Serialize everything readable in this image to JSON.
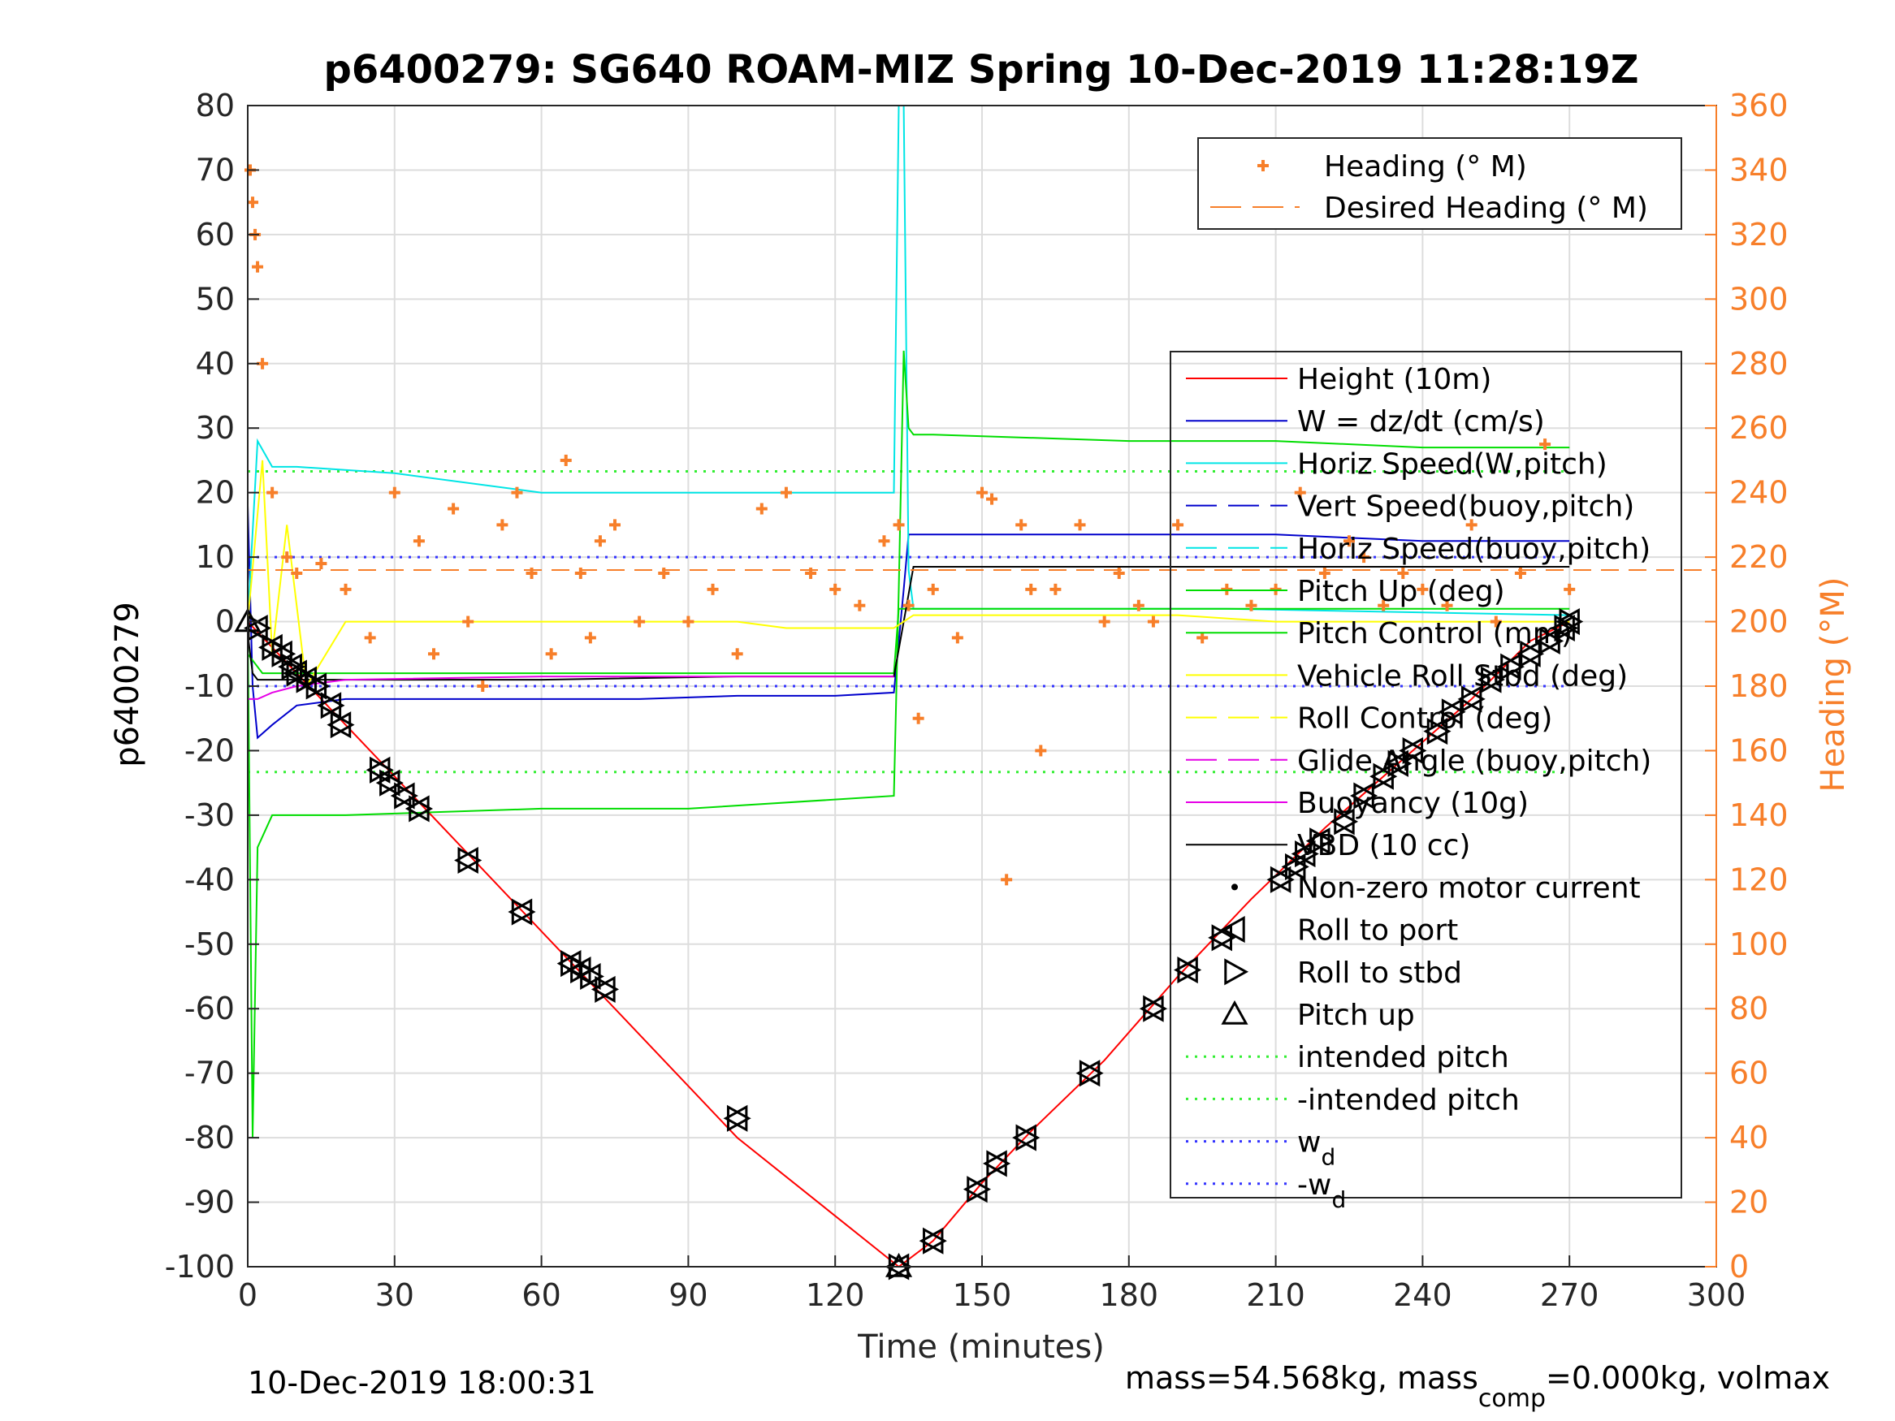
{
  "chart_data": {
    "type": "line",
    "title": "p6400279: SG640 ROAM-MIZ Spring 10-Dec-2019 11:28:19Z",
    "xlabel": "Time (minutes)",
    "ylabel_left": "p6400279",
    "ylabel_right": "Heading (°M)",
    "xlim": [
      0,
      300
    ],
    "ylim_left": [
      -100,
      80
    ],
    "ylim_right": [
      0,
      360
    ],
    "xticks": [
      "0",
      "30",
      "60",
      "90",
      "120",
      "150",
      "180",
      "210",
      "240",
      "270",
      "300"
    ],
    "yticks_left": [
      "80",
      "70",
      "60",
      "50",
      "40",
      "30",
      "20",
      "10",
      "0",
      "-10",
      "-20",
      "-30",
      "-40",
      "-50",
      "-60",
      "-70",
      "-80",
      "-90",
      "-100"
    ],
    "yticks_right": [
      "360",
      "340",
      "320",
      "300",
      "280",
      "260",
      "240",
      "220",
      "200",
      "180",
      "160",
      "140",
      "120",
      "100",
      "80",
      "60",
      "40",
      "20",
      "0"
    ],
    "grid": true,
    "footer_left": "10-Dec-2019 18:00:31",
    "footer_right_prefix": "mass=54.568kg, mass",
    "footer_right_sub": "comp",
    "footer_right_suffix": "=0.000kg, volmax",
    "legend_heading": [
      {
        "name": "Heading (° M)",
        "color": "#f77f2a"
      },
      {
        "name": "Desired Heading (° M)",
        "color": "#f77f2a"
      }
    ],
    "legend_main": [
      {
        "name": "Height (10m)",
        "color": "#ff0000",
        "style": "solid"
      },
      {
        "name": "W = dz/dt (cm/s)",
        "color": "#0000cc",
        "style": "solid"
      },
      {
        "name": "Horiz Speed(W,pitch)",
        "color": "#00e5e5",
        "style": "solid"
      },
      {
        "name": "Vert Speed(buoy,pitch)",
        "color": "#0000cc",
        "style": "dashed"
      },
      {
        "name": "Horiz Speed(buoy,pitch)",
        "color": "#00e5e5",
        "style": "dashed"
      },
      {
        "name": "Pitch Up (deg)",
        "color": "#00dd00",
        "style": "solid"
      },
      {
        "name": "Pitch Control (mm)",
        "color": "#00dd00",
        "style": "solid"
      },
      {
        "name": "Vehicle Roll Stbd (deg)",
        "color": "#ffff00",
        "style": "solid"
      },
      {
        "name": "Roll Control (deg)",
        "color": "#ffff00",
        "style": "dashed"
      },
      {
        "name": "Glide Angle (buoy,pitch)",
        "color": "#e600e6",
        "style": "dashed"
      },
      {
        "name": "Buoyancy (10g)",
        "color": "#e600e6",
        "style": "solid"
      },
      {
        "name": "VBD (10 cc)",
        "color": "#000000",
        "style": "solid"
      },
      {
        "name": "Non-zero motor current",
        "color": "#000000",
        "style": "dot"
      },
      {
        "name": "Roll to port",
        "color": "#000000",
        "style": "tri-left"
      },
      {
        "name": "Roll to stbd",
        "color": "#000000",
        "style": "tri-right"
      },
      {
        "name": "Pitch up",
        "color": "#000000",
        "style": "tri-up"
      },
      {
        "name": "intended pitch",
        "color": "#33ee33",
        "style": "dotted"
      },
      {
        "name": "-intended pitch",
        "color": "#33ee33",
        "style": "dotted"
      },
      {
        "name": "w",
        "sub": "d",
        "color": "#3333ff",
        "style": "dotted"
      },
      {
        "name": "-w",
        "sub": "d",
        "color": "#3333ff",
        "style": "dotted"
      }
    ],
    "series": [
      {
        "name": "Height (10m)",
        "axis": "left",
        "color": "#ff0000",
        "x": [
          0,
          5,
          10,
          20,
          30,
          45,
          60,
          75,
          100,
          133,
          140,
          150,
          160,
          175,
          190,
          205,
          220,
          235,
          250,
          262,
          270
        ],
        "y": [
          0,
          -4,
          -8,
          -16,
          -24,
          -36,
          -48,
          -60,
          -80,
          -100,
          -96,
          -87,
          -79,
          -68,
          -55,
          -43,
          -32,
          -22,
          -12,
          -3,
          0
        ]
      },
      {
        "name": "W = dz/dt (cm/s)",
        "axis": "left",
        "color": "#0000cc",
        "x": [
          0,
          1,
          2,
          5,
          10,
          20,
          40,
          60,
          80,
          100,
          120,
          132,
          134,
          135,
          150,
          180,
          210,
          240,
          270
        ],
        "y": [
          18,
          -10,
          -18,
          -16,
          -13,
          -12,
          -12,
          -12,
          -12,
          -11.5,
          -11.5,
          -11,
          5,
          13.5,
          13.5,
          13.5,
          13.5,
          12.5,
          12.5
        ]
      },
      {
        "name": "Horiz Speed(W,pitch)",
        "axis": "left",
        "color": "#00e5e5",
        "x": [
          0,
          2,
          5,
          10,
          30,
          60,
          90,
          120,
          132,
          133,
          134,
          135,
          136,
          150,
          200,
          270
        ],
        "y": [
          0,
          28,
          24,
          24,
          23,
          20,
          20,
          20,
          20,
          80,
          80,
          8,
          2,
          2,
          2,
          1
        ]
      },
      {
        "name": "Pitch Up (deg)",
        "axis": "left",
        "color": "#00dd00",
        "x": [
          0,
          1,
          2,
          5,
          20,
          60,
          90,
          132,
          133,
          134,
          135,
          136,
          140,
          180,
          210,
          240,
          270
        ],
        "y": [
          0,
          -80,
          -35,
          -30,
          -30,
          -29,
          -29,
          -27,
          5,
          42,
          30,
          29,
          29,
          28,
          28,
          27,
          27
        ]
      },
      {
        "name": "Pitch Control (mm)",
        "axis": "left",
        "color": "#00dd00",
        "x": [
          0,
          3,
          20,
          60,
          132,
          133,
          136,
          270
        ],
        "y": [
          -5,
          -8,
          -8,
          -8,
          -8,
          2,
          2,
          2
        ]
      },
      {
        "name": "VBD (10 cc)",
        "axis": "left",
        "color": "#000000",
        "x": [
          0,
          1,
          2,
          20,
          60,
          100,
          132,
          134,
          136,
          200,
          270
        ],
        "y": [
          -2,
          -8,
          -9,
          -9,
          -9,
          -8.5,
          -8.5,
          0,
          8.5,
          8.5,
          8.5
        ]
      },
      {
        "name": "Buoyancy (10g)",
        "axis": "left",
        "color": "#e600e6",
        "x": [
          0,
          2,
          5,
          10,
          20,
          60,
          100,
          132
        ],
        "y": [
          -12,
          -12,
          -11,
          -10,
          -9,
          -8.5,
          -8.5,
          -8.5
        ]
      },
      {
        "name": "Vehicle Roll Stbd (deg)",
        "axis": "left",
        "color": "#ffff00",
        "x": [
          0,
          3,
          5,
          8,
          12,
          20,
          35,
          50,
          60,
          70,
          80,
          90,
          100,
          110,
          120,
          132,
          136,
          150,
          170,
          190,
          210,
          230,
          250,
          270
        ],
        "y": [
          0,
          25,
          -5,
          15,
          -10,
          0,
          0,
          0,
          0,
          0,
          0,
          0,
          0,
          -1,
          -1,
          -1,
          1,
          1,
          1,
          1,
          0,
          0,
          0,
          0
        ]
      },
      {
        "name": "Heading (° M)",
        "axis": "right",
        "color": "#f77f2a",
        "marker": "plus",
        "x": [
          0.5,
          1,
          1.5,
          2,
          3,
          5,
          8,
          10,
          15,
          20,
          25,
          30,
          35,
          38,
          42,
          45,
          48,
          52,
          55,
          58,
          62,
          65,
          68,
          70,
          72,
          75,
          80,
          85,
          90,
          95,
          100,
          105,
          110,
          115,
          120,
          125,
          130,
          133,
          135,
          137,
          140,
          145,
          150,
          152,
          155,
          158,
          160,
          162,
          165,
          170,
          175,
          178,
          182,
          185,
          190,
          195,
          200,
          205,
          210,
          215,
          220,
          225,
          228,
          232,
          236,
          240,
          245,
          250,
          255,
          260,
          265,
          270
        ],
        "y": [
          340,
          330,
          320,
          310,
          280,
          240,
          220,
          215,
          218,
          210,
          195,
          240,
          225,
          190,
          235,
          200,
          180,
          230,
          240,
          215,
          190,
          250,
          215,
          195,
          225,
          230,
          200,
          215,
          200,
          210,
          190,
          235,
          240,
          215,
          210,
          205,
          225,
          230,
          205,
          170,
          210,
          195,
          240,
          238,
          120,
          230,
          210,
          160,
          210,
          230,
          200,
          215,
          205,
          200,
          230,
          195,
          210,
          205,
          210,
          240,
          215,
          225,
          220,
          205,
          215,
          210,
          205,
          230,
          200,
          215,
          255,
          210
        ]
      },
      {
        "name": "Desired Heading (° M)",
        "axis": "right",
        "color": "#f77f2a",
        "dashed": true,
        "x": [
          0,
          300
        ],
        "y": [
          216,
          216
        ]
      },
      {
        "name": "intended pitch",
        "axis": "left",
        "color": "#33ee33",
        "dotted": true,
        "x": [
          0,
          270
        ],
        "y": [
          23.3,
          23.3
        ]
      },
      {
        "name": "-intended pitch",
        "axis": "left",
        "color": "#33ee33",
        "dotted": true,
        "x": [
          0,
          270
        ],
        "y": [
          -23.3,
          -23.3
        ]
      },
      {
        "name": "w_d",
        "axis": "left",
        "color": "#3333ff",
        "dotted": true,
        "x": [
          0,
          270
        ],
        "y": [
          10,
          10
        ]
      },
      {
        "name": "-w_d",
        "axis": "left",
        "color": "#3333ff",
        "dotted": true,
        "x": [
          0,
          270
        ],
        "y": [
          -10,
          -10
        ]
      }
    ],
    "markers": {
      "pitch_up": {
        "x": [
          0,
          133
        ],
        "y": [
          0,
          -100
        ]
      },
      "roll_events": {
        "x": [
          2,
          5,
          7,
          9,
          10,
          12,
          14,
          17,
          19,
          27,
          29,
          32,
          35,
          45,
          56,
          66,
          68,
          70,
          73,
          100,
          133,
          140,
          149,
          153,
          159,
          172,
          185,
          192,
          199,
          211,
          214,
          216,
          219,
          224,
          228,
          232,
          235,
          238,
          243,
          246,
          250,
          254,
          258,
          262,
          266,
          269,
          270
        ],
        "y": [
          -1,
          -4,
          -5,
          -7,
          -8,
          -9,
          -10,
          -13,
          -16,
          -23,
          -25,
          -27,
          -29,
          -37,
          -45,
          -53,
          -54,
          -55,
          -57,
          -77,
          -100,
          -96,
          -88,
          -84,
          -80,
          -70,
          -60,
          -54,
          -49,
          -40,
          -38,
          -36,
          -34,
          -31,
          -27,
          -24,
          -22,
          -20,
          -17,
          -14,
          -12,
          -9,
          -7,
          -5,
          -3,
          -1,
          0
        ]
      }
    }
  }
}
